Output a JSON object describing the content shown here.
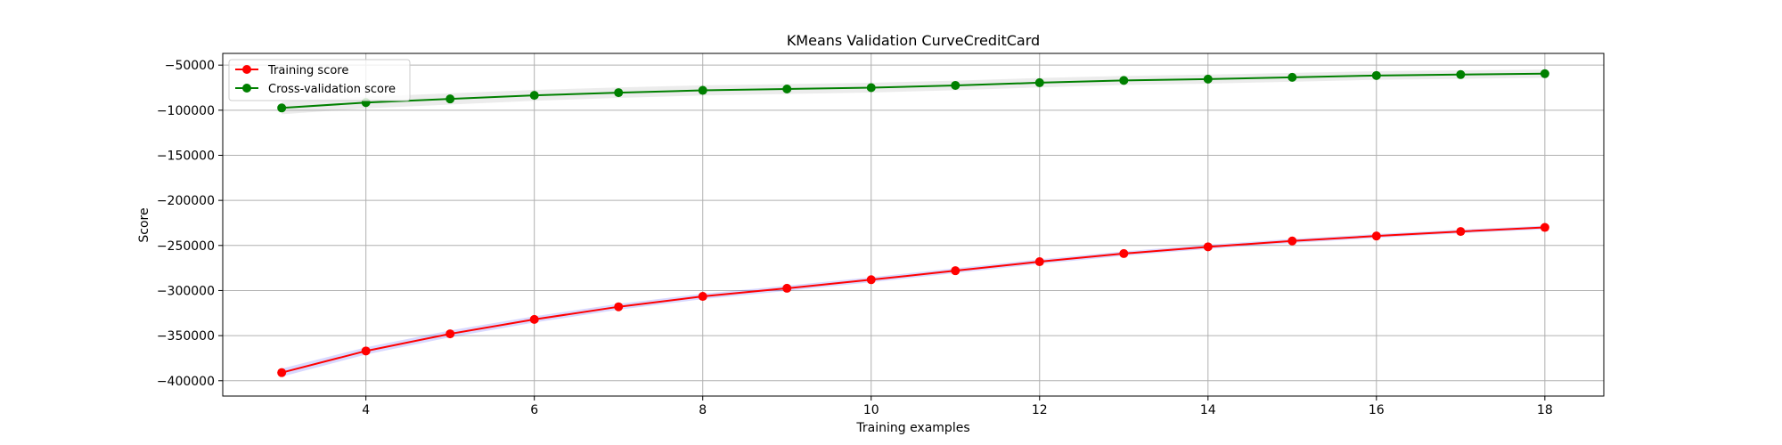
{
  "chart_data": {
    "type": "line",
    "title": "KMeans Validation CurveCreditCard",
    "xlabel": "Training examples",
    "ylabel": "Score",
    "xlim": [
      2.3,
      18.7
    ],
    "ylim": [
      -417000,
      -37000
    ],
    "x_ticks": [
      4,
      6,
      8,
      10,
      12,
      14,
      16,
      18
    ],
    "y_ticks": [
      -400000,
      -350000,
      -300000,
      -250000,
      -200000,
      -150000,
      -100000,
      -50000
    ],
    "y_tick_labels": [
      "−400000",
      "−350000",
      "−300000",
      "−250000",
      "−200000",
      "−150000",
      "−100000",
      "−50000"
    ],
    "grid": true,
    "legend_position": "top-left",
    "x": [
      3,
      4,
      5,
      6,
      7,
      8,
      9,
      10,
      11,
      12,
      13,
      14,
      15,
      16,
      17,
      18
    ],
    "series": [
      {
        "name": "Training score",
        "color": "#ff0000",
        "band_color": "#0000ff",
        "values": [
          -391000,
          -367000,
          -348000,
          -332000,
          -318000,
          -306500,
          -297500,
          -288000,
          -278000,
          -268000,
          -259000,
          -251500,
          -245000,
          -239500,
          -234500,
          -230000
        ],
        "std": [
          4500,
          4000,
          3800,
          3500,
          3300,
          3000,
          2900,
          2800,
          2700,
          2600,
          2500,
          2400,
          2300,
          2200,
          2100,
          2000
        ]
      },
      {
        "name": "Cross-validation score",
        "color": "#008000",
        "band_color": "#808080",
        "values": [
          -97500,
          -91500,
          -87500,
          -83500,
          -80500,
          -78000,
          -76500,
          -75000,
          -72500,
          -69500,
          -67000,
          -65500,
          -63500,
          -61500,
          -60500,
          -59500
        ],
        "std": [
          7000,
          6500,
          6200,
          6000,
          5800,
          5600,
          5500,
          5400,
          5300,
          5200,
          5100,
          5000,
          4900,
          4800,
          4700,
          4600
        ]
      }
    ]
  }
}
